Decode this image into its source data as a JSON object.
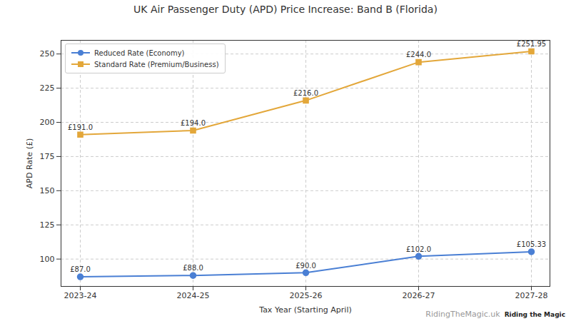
{
  "chart_data": {
    "type": "line",
    "title": "UK Air Passenger Duty (APD) Price Increase: Band B (Florida)",
    "x_label": "Tax Year (Starting April)",
    "y_label": "APD Rate (£)",
    "categories": [
      "2023-24",
      "2024-25",
      "2025-26",
      "2026-27",
      "2027-28"
    ],
    "series": [
      {
        "name": "Reduced Rate (Economy)",
        "color": "#4a7fd4",
        "marker": "circle",
        "values": [
          87,
          88,
          90,
          102,
          105.33
        ],
        "value_labels": [
          "£87.0",
          "£88.0",
          "£90.0",
          "£102.0",
          "£105.33"
        ]
      },
      {
        "name": "Standard Rate (Premium/Business)",
        "color": "#e3a73a",
        "marker": "square",
        "values": [
          191,
          194,
          216,
          244,
          251.95
        ],
        "value_labels": [
          "£191.0",
          "£194.0",
          "£216.0",
          "£244.0",
          "£251.95"
        ]
      }
    ],
    "ylim": [
      80,
      260
    ],
    "yticks": [
      100,
      125,
      150,
      175,
      200,
      225,
      250
    ],
    "grid": true,
    "legend": "upper left",
    "data_labels": true,
    "annotations": [
      "RidingTheMagic.uk",
      "Riding the Magic"
    ]
  }
}
